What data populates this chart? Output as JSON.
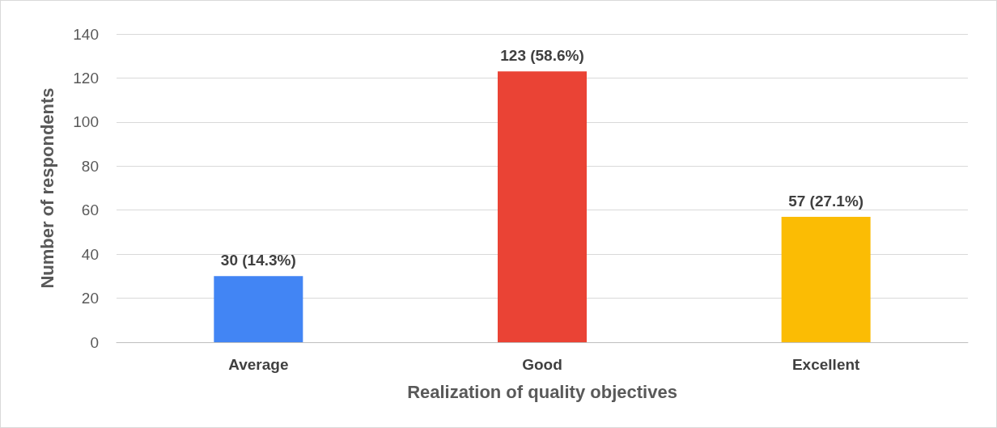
{
  "chart_data": {
    "type": "bar",
    "xlabel": "Realization of quality objectives",
    "ylabel": "Number of respondents",
    "categories": [
      "Average",
      "Good",
      "Excellent"
    ],
    "values": [
      30,
      123,
      57
    ],
    "colors": [
      "#4285f4",
      "#ea4335",
      "#fbbc04"
    ],
    "value_labels": [
      "30 (14.3%)",
      "123 (58.6%)",
      "57 (27.1%)"
    ],
    "ylim": [
      0,
      140
    ],
    "yticks": [
      0,
      20,
      40,
      60,
      80,
      100,
      120,
      140
    ],
    "grid": "y"
  }
}
